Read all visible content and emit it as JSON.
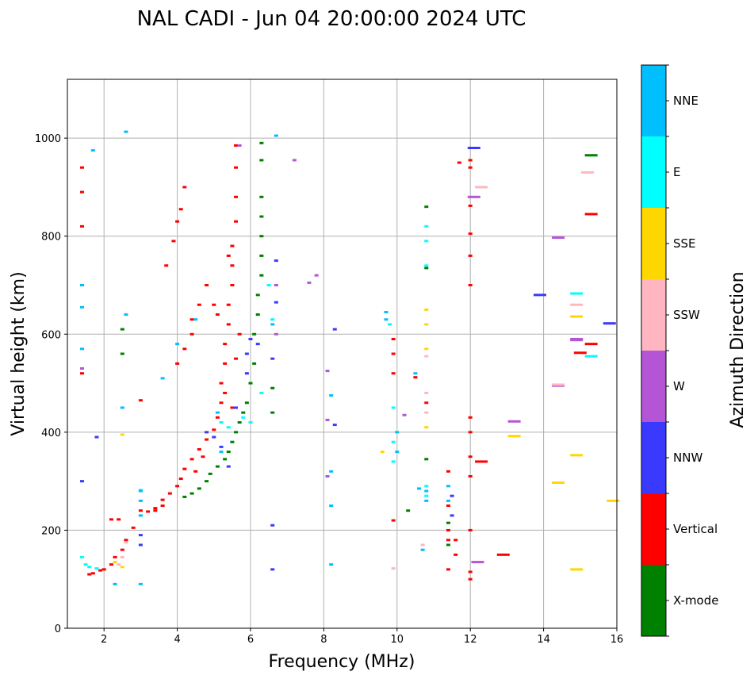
{
  "chart_data": {
    "type": "scatter",
    "title": "NAL CADI - Jun 04 20:00:00 2024 UTC",
    "xlabel": "Frequency (MHz)",
    "ylabel": "Virtual height (km)",
    "xlim": [
      1,
      16
    ],
    "ylim": [
      0,
      1120
    ],
    "xticks": [
      2,
      4,
      6,
      8,
      10,
      12,
      14,
      16
    ],
    "yticks": [
      0,
      200,
      400,
      600,
      800,
      1000
    ],
    "grid": true,
    "colorbar": {
      "label": "Azimuth Direction",
      "categories": [
        {
          "name": "X-mode",
          "color": "#008000"
        },
        {
          "name": "Vertical",
          "color": "#ff0000"
        },
        {
          "name": "NNW",
          "color": "#3a3aff"
        },
        {
          "name": "W",
          "color": "#b455d6"
        },
        {
          "name": "SSW",
          "color": "#ffb6c1"
        },
        {
          "name": "SSE",
          "color": "#ffd700"
        },
        {
          "name": "E",
          "color": "#00ffff"
        },
        {
          "name": "NNE",
          "color": "#00bfff"
        }
      ]
    },
    "series": [
      {
        "name": "Vertical",
        "points": [
          [
            1.6,
            110
          ],
          [
            1.7,
            112
          ],
          [
            1.9,
            118
          ],
          [
            2.0,
            120
          ],
          [
            2.2,
            130
          ],
          [
            2.3,
            145
          ],
          [
            2.5,
            160
          ],
          [
            2.6,
            180
          ],
          [
            2.8,
            205
          ],
          [
            3.0,
            240
          ],
          [
            3.2,
            238
          ],
          [
            3.4,
            245
          ],
          [
            3.6,
            262
          ],
          [
            3.8,
            275
          ],
          [
            4.0,
            290
          ],
          [
            4.1,
            305
          ],
          [
            4.2,
            325
          ],
          [
            4.4,
            345
          ],
          [
            4.6,
            365
          ],
          [
            4.8,
            385
          ],
          [
            5.0,
            405
          ],
          [
            5.1,
            430
          ],
          [
            5.2,
            460
          ],
          [
            5.2,
            500
          ],
          [
            5.3,
            540
          ],
          [
            5.3,
            580
          ],
          [
            5.4,
            620
          ],
          [
            5.4,
            660
          ],
          [
            5.5,
            700
          ],
          [
            5.5,
            740
          ],
          [
            5.5,
            780
          ],
          [
            5.6,
            830
          ],
          [
            5.6,
            880
          ],
          [
            5.6,
            940
          ],
          [
            5.6,
            985
          ],
          [
            3.4,
            240
          ],
          [
            3.6,
            250
          ],
          [
            3.7,
            740
          ],
          [
            3.9,
            790
          ],
          [
            4.0,
            540
          ],
          [
            4.0,
            830
          ],
          [
            4.1,
            855
          ],
          [
            4.2,
            570
          ],
          [
            4.2,
            900
          ],
          [
            4.4,
            600
          ],
          [
            4.4,
            630
          ],
          [
            4.6,
            660
          ],
          [
            4.8,
            700
          ],
          [
            4.5,
            320
          ],
          [
            4.7,
            350
          ],
          [
            5.0,
            660
          ],
          [
            5.1,
            640
          ],
          [
            5.3,
            480
          ],
          [
            5.4,
            760
          ],
          [
            5.5,
            450
          ],
          [
            5.6,
            550
          ],
          [
            5.7,
            600
          ],
          [
            1.4,
            520
          ],
          [
            1.4,
            820
          ],
          [
            1.4,
            890
          ],
          [
            1.4,
            940
          ],
          [
            2.2,
            222
          ],
          [
            2.4,
            222
          ],
          [
            3.0,
            465
          ],
          [
            9.9,
            560
          ],
          [
            9.9,
            520
          ],
          [
            9.9,
            220
          ],
          [
            9.9,
            590
          ],
          [
            10.5,
            512
          ],
          [
            10.8,
            460
          ],
          [
            11.4,
            120
          ],
          [
            11.4,
            180
          ],
          [
            11.4,
            200
          ],
          [
            11.4,
            250
          ],
          [
            11.4,
            320
          ],
          [
            11.6,
            180
          ],
          [
            11.6,
            150
          ],
          [
            12.0,
            100
          ],
          [
            12.0,
            115
          ],
          [
            12.0,
            200
          ],
          [
            12.0,
            310
          ],
          [
            12.0,
            350
          ],
          [
            12.0,
            400
          ],
          [
            12.0,
            430
          ],
          [
            12.0,
            700
          ],
          [
            12.0,
            760
          ],
          [
            12.0,
            805
          ],
          [
            12.0,
            862
          ],
          [
            12.0,
            940
          ],
          [
            12.0,
            955
          ],
          [
            12.3,
            340
          ],
          [
            12.9,
            150
          ],
          [
            15.3,
            580
          ],
          [
            15.3,
            845
          ],
          [
            15.0,
            562
          ],
          [
            11.7,
            950
          ]
        ]
      },
      {
        "name": "X-mode",
        "points": [
          [
            4.2,
            268
          ],
          [
            4.4,
            275
          ],
          [
            4.6,
            285
          ],
          [
            4.8,
            300
          ],
          [
            4.9,
            315
          ],
          [
            5.1,
            330
          ],
          [
            5.3,
            345
          ],
          [
            5.4,
            360
          ],
          [
            5.5,
            380
          ],
          [
            5.6,
            400
          ],
          [
            5.7,
            420
          ],
          [
            5.8,
            440
          ],
          [
            5.9,
            460
          ],
          [
            6.0,
            500
          ],
          [
            6.1,
            540
          ],
          [
            6.1,
            600
          ],
          [
            6.2,
            640
          ],
          [
            6.2,
            680
          ],
          [
            6.3,
            720
          ],
          [
            6.3,
            760
          ],
          [
            6.3,
            800
          ],
          [
            6.3,
            840
          ],
          [
            6.3,
            880
          ],
          [
            6.3,
            990
          ],
          [
            6.3,
            955
          ],
          [
            6.6,
            490
          ],
          [
            6.6,
            440
          ],
          [
            2.5,
            560
          ],
          [
            2.5,
            610
          ],
          [
            10.3,
            240
          ],
          [
            10.8,
            345
          ],
          [
            10.8,
            860
          ],
          [
            10.8,
            735
          ],
          [
            11.4,
            170
          ],
          [
            11.4,
            215
          ],
          [
            15.3,
            965
          ]
        ]
      },
      {
        "name": "NNW",
        "points": [
          [
            1.8,
            390
          ],
          [
            3.0,
            190
          ],
          [
            3.0,
            170
          ],
          [
            4.8,
            400
          ],
          [
            5.0,
            390
          ],
          [
            5.2,
            370
          ],
          [
            5.4,
            330
          ],
          [
            5.6,
            450
          ],
          [
            5.9,
            520
          ],
          [
            5.9,
            560
          ],
          [
            6.0,
            590
          ],
          [
            6.2,
            580
          ],
          [
            6.6,
            120
          ],
          [
            6.6,
            210
          ],
          [
            6.6,
            550
          ],
          [
            6.7,
            750
          ],
          [
            6.7,
            665
          ],
          [
            8.3,
            415
          ],
          [
            8.3,
            610
          ],
          [
            11.5,
            230
          ],
          [
            11.5,
            270
          ],
          [
            12.1,
            980
          ],
          [
            13.9,
            680
          ],
          [
            15.8,
            622
          ],
          [
            1.4,
            300
          ]
        ]
      },
      {
        "name": "W",
        "points": [
          [
            1.4,
            530
          ],
          [
            5.7,
            985
          ],
          [
            6.7,
            700
          ],
          [
            6.7,
            600
          ],
          [
            7.2,
            955
          ],
          [
            7.6,
            705
          ],
          [
            7.8,
            720
          ],
          [
            8.1,
            525
          ],
          [
            8.1,
            425
          ],
          [
            8.1,
            310
          ],
          [
            10.2,
            435
          ],
          [
            12.1,
            880
          ],
          [
            12.2,
            135
          ],
          [
            13.2,
            422
          ],
          [
            14.4,
            495
          ],
          [
            14.4,
            797
          ],
          [
            14.9,
            590
          ],
          [
            14.9,
            588
          ]
        ]
      },
      {
        "name": "SSW",
        "points": [
          [
            2.4,
            130
          ],
          [
            2.5,
            145
          ],
          [
            2.6,
            175
          ],
          [
            9.9,
            122
          ],
          [
            10.7,
            170
          ],
          [
            10.8,
            480
          ],
          [
            10.8,
            440
          ],
          [
            10.8,
            555
          ],
          [
            12.3,
            900
          ],
          [
            14.9,
            660
          ],
          [
            15.2,
            930
          ],
          [
            14.4,
            497
          ]
        ]
      },
      {
        "name": "SSE",
        "points": [
          [
            2.3,
            135
          ],
          [
            2.5,
            125
          ],
          [
            2.5,
            395
          ],
          [
            9.6,
            360
          ],
          [
            10.8,
            410
          ],
          [
            10.8,
            620
          ],
          [
            10.8,
            570
          ],
          [
            10.8,
            650
          ],
          [
            13.2,
            392
          ],
          [
            14.4,
            297
          ],
          [
            14.9,
            353
          ],
          [
            14.9,
            636
          ],
          [
            14.9,
            120
          ],
          [
            15.9,
            260
          ]
        ]
      },
      {
        "name": "E",
        "points": [
          [
            1.4,
            145
          ],
          [
            1.5,
            130
          ],
          [
            1.6,
            125
          ],
          [
            1.8,
            122
          ],
          [
            3.0,
            282
          ],
          [
            5.2,
            420
          ],
          [
            5.4,
            410
          ],
          [
            5.8,
            430
          ],
          [
            6.0,
            420
          ],
          [
            6.3,
            480
          ],
          [
            6.6,
            630
          ],
          [
            6.5,
            700
          ],
          [
            9.9,
            450
          ],
          [
            9.9,
            380
          ],
          [
            9.9,
            340
          ],
          [
            10.8,
            820
          ],
          [
            10.8,
            790
          ],
          [
            10.8,
            740
          ],
          [
            10.8,
            290
          ],
          [
            10.8,
            270
          ],
          [
            14.9,
            683
          ],
          [
            15.3,
            555
          ],
          [
            9.8,
            620
          ]
        ]
      },
      {
        "name": "NNE",
        "points": [
          [
            2.3,
            90
          ],
          [
            2.6,
            640
          ],
          [
            2.5,
            450
          ],
          [
            2.6,
            1013
          ],
          [
            3.0,
            90
          ],
          [
            3.0,
            230
          ],
          [
            3.0,
            260
          ],
          [
            3.0,
            280
          ],
          [
            3.6,
            510
          ],
          [
            4.0,
            580
          ],
          [
            4.5,
            630
          ],
          [
            5.1,
            440
          ],
          [
            5.2,
            360
          ],
          [
            6.7,
            1005
          ],
          [
            6.6,
            620
          ],
          [
            8.2,
            475
          ],
          [
            8.2,
            320
          ],
          [
            8.2,
            250
          ],
          [
            8.2,
            130
          ],
          [
            9.7,
            645
          ],
          [
            9.7,
            630
          ],
          [
            10.0,
            360
          ],
          [
            10.0,
            400
          ],
          [
            10.5,
            520
          ],
          [
            10.6,
            285
          ],
          [
            10.7,
            160
          ],
          [
            10.8,
            260
          ],
          [
            10.8,
            280
          ],
          [
            11.4,
            260
          ],
          [
            11.4,
            290
          ],
          [
            1.4,
            570
          ],
          [
            1.4,
            655
          ],
          [
            1.4,
            700
          ],
          [
            1.7,
            975
          ]
        ]
      }
    ]
  }
}
